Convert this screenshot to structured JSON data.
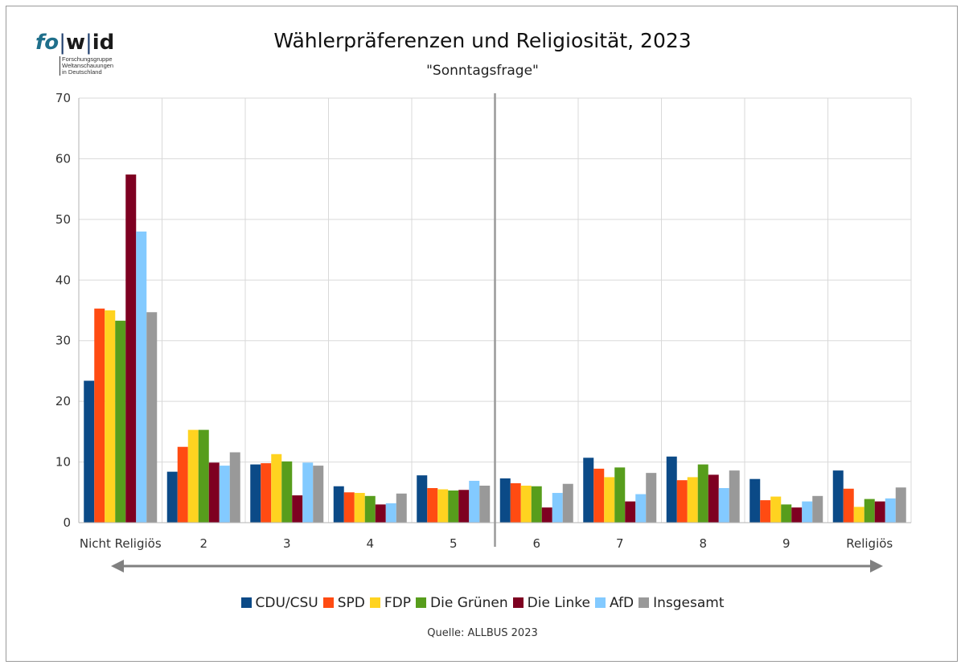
{
  "logo": {
    "word_a": "fo",
    "word_b": "w",
    "word_c": "id",
    "subtitle": "Forschungsgruppe\nWeltanschauungen\nin Deutschland"
  },
  "chart_data": {
    "type": "bar",
    "title": "Wählerpräferenzen und Religiosität, 2023",
    "subtitle": "\"Sonntagsfrage\"",
    "source": "Quelle: ALLBUS  2023",
    "xlabel": "",
    "ylabel": "",
    "ylim": [
      0,
      70
    ],
    "yticks": [
      0,
      10,
      20,
      30,
      40,
      50,
      60,
      70
    ],
    "grid": true,
    "legend_position": "bottom",
    "categories": [
      "Nicht Religiös",
      "2",
      "3",
      "4",
      "5",
      "6",
      "7",
      "8",
      "9",
      "Religiös"
    ],
    "divider_between": [
      "5",
      "6"
    ],
    "axis_arrow": "double-headed arrow below category axis",
    "series": [
      {
        "name": "CDU/CSU",
        "color": "#0b4a87",
        "values": [
          23.4,
          8.4,
          9.6,
          6.0,
          7.8,
          7.3,
          10.7,
          10.9,
          7.2,
          8.6
        ]
      },
      {
        "name": "SPD",
        "color": "#ff4b12",
        "values": [
          35.3,
          12.5,
          9.8,
          5.0,
          5.7,
          6.5,
          8.9,
          7.0,
          3.7,
          5.6
        ]
      },
      {
        "name": "FDP",
        "color": "#ffd320",
        "values": [
          35.0,
          15.3,
          11.3,
          4.9,
          5.5,
          6.1,
          7.5,
          7.5,
          4.3,
          2.6
        ]
      },
      {
        "name": "Die Grünen",
        "color": "#579d1c",
        "values": [
          33.3,
          15.3,
          10.1,
          4.4,
          5.3,
          6.0,
          9.1,
          9.6,
          3.0,
          3.9
        ]
      },
      {
        "name": "Die Linke",
        "color": "#7e0021",
        "values": [
          57.4,
          9.9,
          4.5,
          3.0,
          5.4,
          2.5,
          3.5,
          7.9,
          2.5,
          3.5
        ]
      },
      {
        "name": "AfD",
        "color": "#83caff",
        "values": [
          48.0,
          9.4,
          9.9,
          3.2,
          6.9,
          4.9,
          4.7,
          5.7,
          3.5,
          4.0
        ]
      },
      {
        "name": "Insgesamt",
        "color": "#999999",
        "values": [
          34.7,
          11.6,
          9.4,
          4.8,
          6.1,
          6.4,
          8.2,
          8.6,
          4.4,
          5.8
        ]
      }
    ]
  }
}
